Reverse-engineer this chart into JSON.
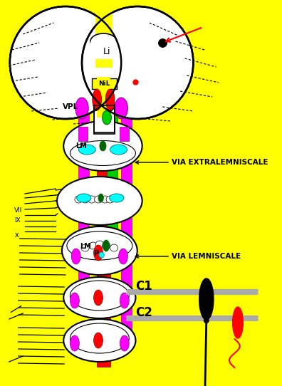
{
  "bg": "#FFFF00",
  "black": "#000000",
  "white": "#FFFFFF",
  "red": "#FF0000",
  "magenta": "#FF00FF",
  "green": "#00AA00",
  "dark_green": "#006600",
  "bright_green": "#00CC00",
  "cyan": "#00FFFF",
  "gray": "#AAAAAA",
  "dark_gray": "#666666",
  "text_li": "Li",
  "text_nil": "NiL",
  "text_vpl": "VPL",
  "text_lm_pons": "LM",
  "text_lm_sc": "LM",
  "text_p": "P",
  "text_viii": "VII",
  "text_ix": "IX",
  "text_x": "x",
  "text_c1": "C1",
  "text_c2": "C2",
  "text_via_extra": "VIA EXTRALEMNISCALE",
  "text_via_lemn": "VIA LEMNISCALE",
  "fig_w": 3.96,
  "fig_h": 5.42,
  "dpi": 100
}
